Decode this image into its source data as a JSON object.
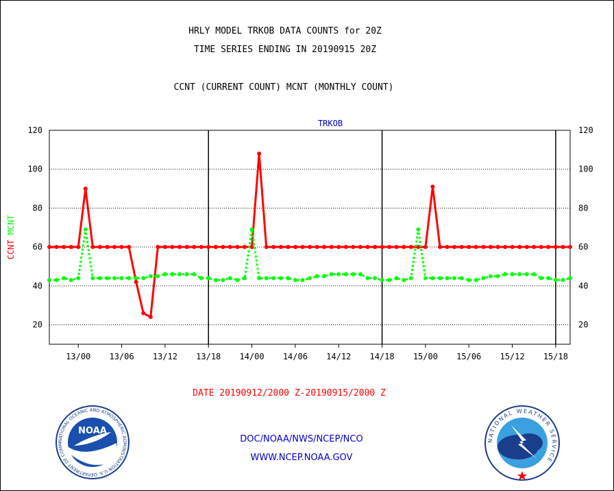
{
  "header": {
    "line1": "HRLY MODEL TRKOB DATA COUNTS for 20Z",
    "line2": "TIME SERIES ENDING IN 20190915 20Z",
    "line3": "CCNT (CURRENT COUNT) MCNT (MONTHLY COUNT)"
  },
  "footer": {
    "date_range": "DATE 20190912/2000 Z-20190915/2000 Z",
    "agency": "DOC/NOAA/NWS/NCEP/NCO",
    "website": "WWW.NCEP.NOAA.GOV"
  },
  "logos": {
    "left_text": "NOAA",
    "left_ring_text": "NATIONAL OCEANIC AND ATMOSPHERIC ADMINISTRATION U.S. DEPARTMENT OF COMMERCE",
    "right_ring_text": "NATIONAL WEATHER SERVICE"
  },
  "colors": {
    "ccnt": "#ff0000",
    "mcnt": "#00ff00",
    "title_blue": "#0000cc",
    "grid": "#000000"
  },
  "chart_data": {
    "type": "line",
    "title": "TRKOB",
    "ylabel_parts": [
      {
        "text": "CCNT",
        "color": "#ff0000"
      },
      {
        "text": "MCNT",
        "color": "#00ff00"
      }
    ],
    "ylim": [
      10,
      120
    ],
    "yticks": [
      20,
      40,
      60,
      80,
      100,
      120
    ],
    "x_start_hours_offset": 0,
    "x_range_hours": [
      0,
      72
    ],
    "xtick_labels": [
      "13/00",
      "13/06",
      "13/12",
      "13/18",
      "14/00",
      "14/06",
      "14/12",
      "14/18",
      "15/00",
      "15/06",
      "15/12",
      "15/18"
    ],
    "xtick_hours": [
      4,
      10,
      16,
      22,
      28,
      34,
      40,
      46,
      52,
      58,
      64,
      70
    ],
    "day_boundaries_hours": [
      22,
      46,
      70
    ],
    "grid": true,
    "series": [
      {
        "name": "CCNT",
        "color": "#ff0000",
        "style": "solid",
        "values": [
          60,
          60,
          60,
          60,
          60,
          90,
          60,
          60,
          60,
          60,
          60,
          60,
          42,
          26,
          24,
          60,
          60,
          60,
          60,
          60,
          60,
          60,
          60,
          60,
          60,
          60,
          60,
          60,
          60,
          108,
          60,
          60,
          60,
          60,
          60,
          60,
          60,
          60,
          60,
          60,
          60,
          60,
          60,
          60,
          60,
          60,
          60,
          60,
          60,
          60,
          60,
          60,
          60,
          91,
          60,
          60,
          60,
          60,
          60,
          60,
          60,
          60,
          60,
          60,
          60,
          60,
          60,
          60,
          60,
          60,
          60,
          60,
          60
        ]
      },
      {
        "name": "MCNT",
        "color": "#00ff00",
        "style": "dotted",
        "values": [
          43,
          43,
          44,
          43,
          44,
          69,
          44,
          44,
          44,
          44,
          44,
          44,
          44,
          44,
          45,
          45,
          46,
          46,
          46,
          46,
          46,
          44,
          44,
          43,
          43,
          44,
          43,
          44,
          69,
          44,
          44,
          44,
          44,
          44,
          43,
          43,
          44,
          45,
          45,
          46,
          46,
          46,
          46,
          46,
          44,
          44,
          43,
          43,
          44,
          43,
          44,
          69,
          44,
          44,
          44,
          44,
          44,
          44,
          43,
          43,
          44,
          45,
          45,
          46,
          46,
          46,
          46,
          46,
          44,
          44,
          43,
          43,
          44
        ]
      }
    ]
  }
}
